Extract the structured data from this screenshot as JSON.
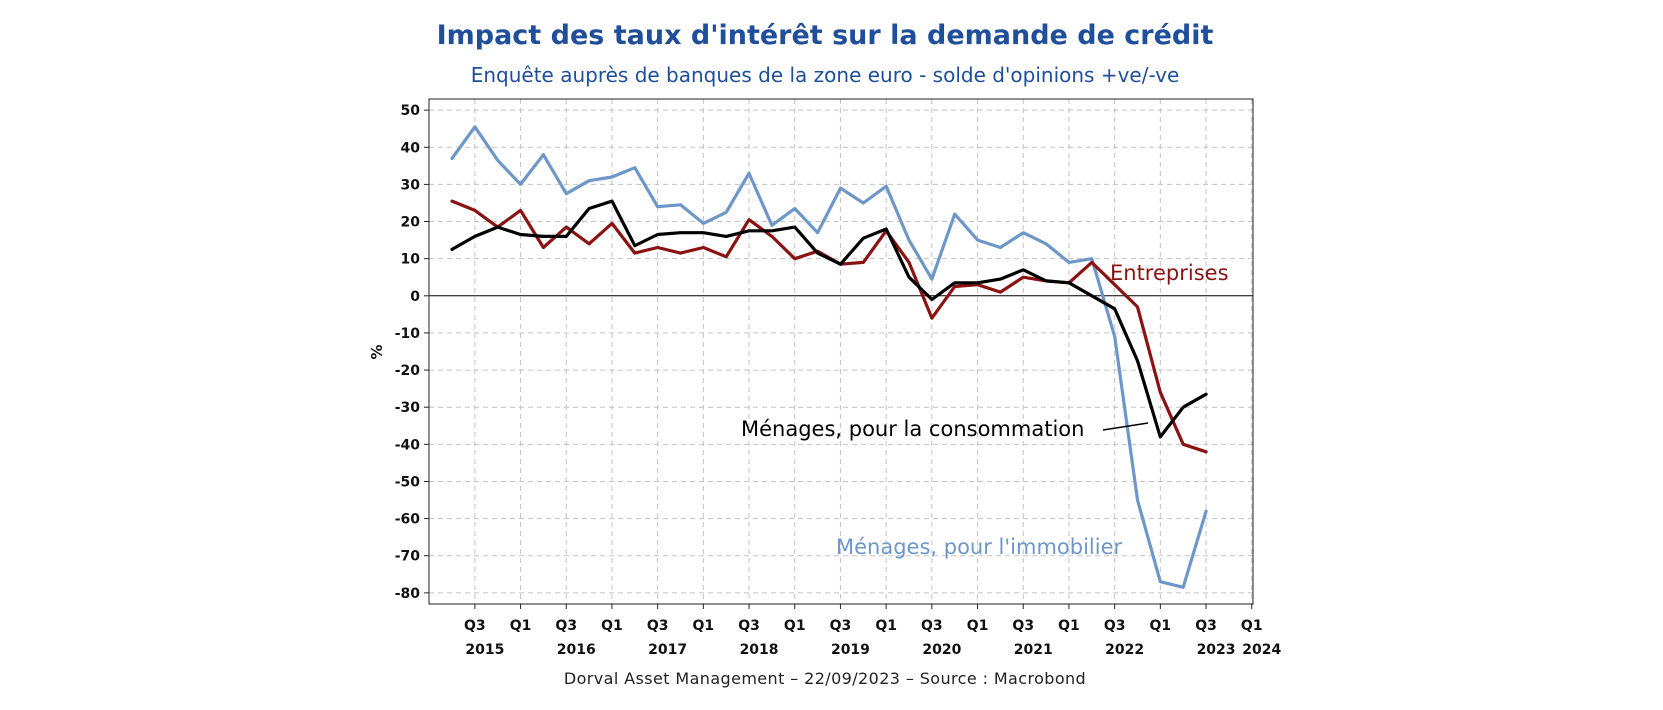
{
  "chart_data": {
    "type": "line",
    "title": "Impact des taux d'intérêt sur la demande de crédit",
    "subtitle": "Enquête auprès de banques de la zone euro - solde d'opinions +ve/-ve",
    "ylabel": "%",
    "xlabel": "",
    "ylim": [
      -83,
      53
    ],
    "yticks": [
      50,
      40,
      30,
      20,
      10,
      0,
      -10,
      -20,
      -30,
      -40,
      -50,
      -60,
      -70,
      -80
    ],
    "grid": true,
    "zero_line": true,
    "x": [
      "2015Q2",
      "2015Q3",
      "2015Q4",
      "2016Q1",
      "2016Q2",
      "2016Q3",
      "2016Q4",
      "2017Q1",
      "2017Q2",
      "2017Q3",
      "2017Q4",
      "2018Q1",
      "2018Q2",
      "2018Q3",
      "2018Q4",
      "2019Q1",
      "2019Q2",
      "2019Q3",
      "2019Q4",
      "2020Q1",
      "2020Q2",
      "2020Q3",
      "2020Q4",
      "2021Q1",
      "2021Q2",
      "2021Q3",
      "2021Q4",
      "2022Q1",
      "2022Q2",
      "2022Q3",
      "2022Q4",
      "2023Q1",
      "2023Q2",
      "2023Q3"
    ],
    "x_ticks": [
      {
        "q": "Q3",
        "year": "2015"
      },
      {
        "q": "Q1",
        "year": ""
      },
      {
        "q": "Q3",
        "year": "2016"
      },
      {
        "q": "Q1",
        "year": ""
      },
      {
        "q": "Q3",
        "year": "2017"
      },
      {
        "q": "Q1",
        "year": ""
      },
      {
        "q": "Q3",
        "year": "2018"
      },
      {
        "q": "Q1",
        "year": ""
      },
      {
        "q": "Q3",
        "year": "2019"
      },
      {
        "q": "Q1",
        "year": ""
      },
      {
        "q": "Q3",
        "year": "2020"
      },
      {
        "q": "Q1",
        "year": ""
      },
      {
        "q": "Q3",
        "year": "2021"
      },
      {
        "q": "Q1",
        "year": ""
      },
      {
        "q": "Q3",
        "year": "2022"
      },
      {
        "q": "Q1",
        "year": ""
      },
      {
        "q": "Q3",
        "year": "2023"
      },
      {
        "q": "Q1",
        "year": "2024"
      }
    ],
    "series": [
      {
        "name": "Ménages, pour l'immobilier",
        "color": "#6e97c9",
        "values": [
          37,
          45.5,
          36.5,
          30,
          38,
          27.5,
          31,
          32,
          34.5,
          24,
          24.5,
          19.5,
          22.5,
          33,
          19,
          23.5,
          17,
          29,
          25,
          29.5,
          15,
          4.5,
          22,
          15,
          13,
          17,
          14,
          9,
          10,
          -11,
          -55,
          -77,
          -78.5,
          -58
        ]
      },
      {
        "name": "Entreprises",
        "color": "#8b1212",
        "values": [
          25.5,
          23,
          18.5,
          23,
          13,
          18.5,
          14,
          19.5,
          11.5,
          13,
          11.5,
          13,
          10.5,
          20.5,
          16,
          10,
          12,
          8.5,
          9,
          17.5,
          9,
          -6,
          2.5,
          3,
          1,
          5,
          4,
          3.5,
          9,
          3,
          -3,
          -26,
          -40,
          -42
        ]
      },
      {
        "name": "Ménages, pour la consommation",
        "color": "#000000",
        "values": [
          12.5,
          16,
          18.5,
          16.5,
          16,
          16,
          23.5,
          25.5,
          13.5,
          16.5,
          17,
          17,
          16,
          17.5,
          17.5,
          18.5,
          11.5,
          8.5,
          15.5,
          18,
          5,
          -1,
          3.5,
          3.5,
          4.5,
          7,
          4,
          3.5,
          0,
          -3.5,
          -17.5,
          -38,
          -30,
          -26.5
        ]
      }
    ],
    "annotations": [
      {
        "text": "Entreprises",
        "color": "#8b1212"
      },
      {
        "text": "Ménages, pour la consommation",
        "color": "#000000"
      },
      {
        "text": "Ménages, pour l'immobilier",
        "color": "#6e97c9"
      }
    ],
    "source": "Dorval Asset Management – 22/09/2023  –   Source : Macrobond"
  }
}
